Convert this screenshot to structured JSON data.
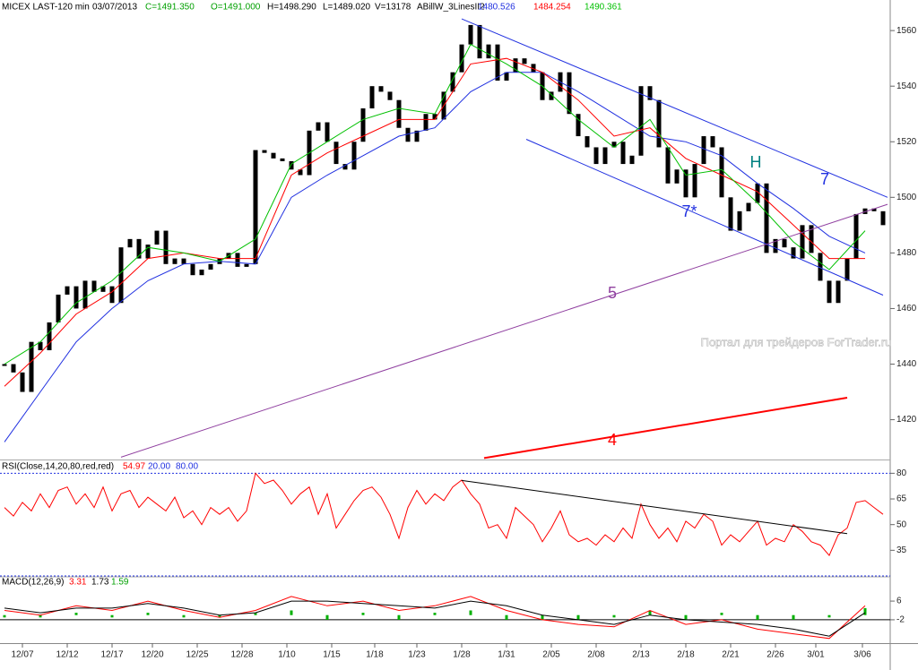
{
  "chart_data": [
    {
      "type": "price",
      "title": "MICEX LAST-120 min",
      "subtitle": "03/07/2013",
      "quote": [
        {
          "text": "C=1491.350",
          "color": "#00a000"
        },
        {
          "text": "O=1491.000",
          "color": "#00a000"
        },
        {
          "text": "H=1498.290",
          "color": "#000000"
        },
        {
          "text": "L=1489.020",
          "color": "#000000"
        },
        {
          "text": "V=13178",
          "color": "#000000"
        }
      ],
      "indicator": "ABillW_3LinesII2",
      "xlim": [
        -0.5,
        98.5
      ],
      "xticks": [
        {
          "value": 2,
          "label": "12/07"
        },
        {
          "value": 7,
          "label": "12/12"
        },
        {
          "value": 12,
          "label": "12/17"
        },
        {
          "value": 16.5,
          "label": "12/20"
        },
        {
          "value": 21.5,
          "label": "12/25"
        },
        {
          "value": 26.5,
          "label": "12/28"
        },
        {
          "value": 31.5,
          "label": "1/10"
        },
        {
          "value": 36.5,
          "label": "1/15"
        },
        {
          "value": 41.3,
          "label": "1/18"
        },
        {
          "value": 46,
          "label": "1/23"
        },
        {
          "value": 51,
          "label": "1/28"
        },
        {
          "value": 56,
          "label": "1/31"
        },
        {
          "value": 61,
          "label": "2/05"
        },
        {
          "value": 66,
          "label": "2/08"
        },
        {
          "value": 71,
          "label": "2/13"
        },
        {
          "value": 76,
          "label": "2/18"
        },
        {
          "value": 81,
          "label": "2/21"
        },
        {
          "value": 86,
          "label": "2/26"
        },
        {
          "value": 90.5,
          "label": "3/01"
        },
        {
          "value": 95.7,
          "label": "3/06"
        }
      ],
      "ylim": [
        1406,
        1571
      ],
      "yticks": [
        1420,
        1440,
        1460,
        1480,
        1500,
        1520,
        1540,
        1560
      ],
      "close": {
        "color": "#000000",
        "values": [
          1440,
          1437,
          1430,
          1448,
          1445,
          1455,
          1465,
          1468,
          1460,
          1470,
          1466,
          1468,
          1462,
          1482,
          1485,
          1478,
          1483,
          1488,
          1476,
          1478,
          1476,
          1472,
          1474,
          1476,
          1478,
          1480,
          1475,
          1476,
          1517,
          1516,
          1514,
          1513,
          1510,
          1508,
          1524,
          1527,
          1520,
          1512,
          1510,
          1520,
          1532,
          1540,
          1538,
          1535,
          1525,
          1520,
          1524,
          1530,
          1528,
          1538,
          1545,
          1555,
          1562,
          1550,
          1555,
          1542,
          1545,
          1550,
          1548,
          1545,
          1535,
          1538,
          1545,
          1530,
          1522,
          1518,
          1512,
          1518,
          1520,
          1512,
          1515,
          1540,
          1535,
          1518,
          1505,
          1510,
          1500,
          1512,
          1522,
          1518,
          1500,
          1488,
          1495,
          1498,
          1505,
          1480,
          1485,
          1482,
          1478,
          1490,
          1480,
          1470,
          1462,
          1470,
          1478,
          1494,
          1496,
          1495,
          1490
        ]
      },
      "series": [
        {
          "color": "#2030e0",
          "value_label": "1480.526",
          "x": [
            0,
            4,
            8,
            12,
            16,
            20,
            24,
            28,
            32,
            36,
            40,
            44,
            48,
            52,
            56,
            60,
            64,
            68,
            72,
            76,
            80,
            84,
            88,
            92,
            96
          ],
          "values": [
            1412,
            1430,
            1448,
            1460,
            1470,
            1476,
            1477,
            1476,
            1500,
            1508,
            1515,
            1522,
            1525,
            1538,
            1545,
            1545,
            1538,
            1530,
            1522,
            1520,
            1515,
            1505,
            1496,
            1486,
            1480
          ]
        },
        {
          "color": "#ff0000",
          "value_label": "1484.254",
          "x": [
            0,
            4,
            8,
            12,
            16,
            20,
            24,
            28,
            32,
            36,
            40,
            44,
            48,
            52,
            56,
            60,
            64,
            68,
            72,
            76,
            80,
            84,
            88,
            92,
            96
          ],
          "values": [
            1432,
            1444,
            1458,
            1466,
            1478,
            1480,
            1478,
            1478,
            1508,
            1516,
            1522,
            1528,
            1528,
            1548,
            1550,
            1545,
            1535,
            1522,
            1525,
            1514,
            1508,
            1502,
            1490,
            1478,
            1478
          ]
        },
        {
          "color": "#00c000",
          "value_label": "1490.361",
          "x": [
            0,
            4,
            8,
            12,
            16,
            20,
            24,
            28,
            32,
            36,
            40,
            44,
            48,
            52,
            56,
            60,
            64,
            68,
            72,
            76,
            80,
            84,
            88,
            92,
            96
          ],
          "values": [
            1440,
            1448,
            1462,
            1470,
            1482,
            1480,
            1477,
            1485,
            1512,
            1520,
            1528,
            1532,
            1530,
            1555,
            1548,
            1540,
            1528,
            1518,
            1528,
            1508,
            1510,
            1498,
            1484,
            1474,
            1488
          ]
        }
      ],
      "trendlines": [
        {
          "color": "#2030e0",
          "x": [
            51,
            98.5
          ],
          "values": [
            1564.2,
            1500
          ]
        },
        {
          "color": "#2030e0",
          "x": [
            58.2,
            98
          ],
          "values": [
            1520.9,
            1464.8
          ]
        },
        {
          "color": "#9040a0",
          "x": [
            13,
            98.5
          ],
          "values": [
            1406.5,
            1497.5
          ]
        },
        {
          "color": "#ff0000",
          "x": [
            53.5,
            94
          ],
          "values": [
            1406.2,
            1427.9
          ]
        }
      ],
      "annotations": [
        {
          "text": "7",
          "color": "#2030e0"
        },
        {
          "text": "7*",
          "color": "#2030e0"
        },
        {
          "text": "H",
          "color": "#008080"
        },
        {
          "text": "5",
          "color": "#9040a0"
        },
        {
          "text": "4",
          "color": "#ff0000"
        }
      ],
      "watermark": "Портал для трейдеров   ForTrader.ru"
    },
    {
      "type": "rsi",
      "title": "RSI(Close,14,20,80,red,red)",
      "quote": [
        {
          "text": "54.97",
          "color": "#ff0000"
        },
        {
          "text": "20.00",
          "color": "#2030e0"
        },
        {
          "text": "80.00",
          "color": "#2030e0"
        }
      ],
      "ylim": [
        20,
        87
      ],
      "yticks": [
        35,
        50,
        65,
        80
      ],
      "levels": [
        20,
        80
      ],
      "level_color": "#2030e0",
      "series": [
        {
          "color": "#ff0000",
          "values": [
            60,
            55,
            63,
            58,
            68,
            60,
            70,
            72,
            62,
            68,
            60,
            72,
            58,
            68,
            70,
            60,
            66,
            62,
            58,
            66,
            54,
            58,
            50,
            60,
            56,
            60,
            52,
            58,
            80,
            74,
            76,
            70,
            62,
            68,
            72,
            56,
            68,
            48,
            56,
            64,
            70,
            72,
            66,
            56,
            42,
            60,
            70,
            62,
            68,
            64,
            72,
            76,
            68,
            62,
            48,
            50,
            42,
            60,
            55,
            50,
            40,
            48,
            58,
            44,
            40,
            42,
            38,
            44,
            40,
            48,
            42,
            62,
            50,
            42,
            48,
            40,
            52,
            48,
            56,
            52,
            38,
            44,
            40,
            46,
            52,
            38,
            42,
            40,
            50,
            46,
            40,
            38,
            32,
            44,
            48,
            63,
            64,
            60,
            56
          ]
        }
      ],
      "trendlines": [
        {
          "color": "#000000",
          "x": [
            51,
            94
          ],
          "values": [
            75.8,
            44.7
          ]
        }
      ]
    },
    {
      "type": "macd",
      "title": "MACD(12,26,9)",
      "quote": [
        {
          "text": "3.31",
          "color": "#ff0000"
        },
        {
          "text": "1.73",
          "color": "#000000"
        },
        {
          "text": "1.59",
          "color": "#00a000"
        }
      ],
      "ylim": [
        -12,
        16
      ],
      "yticks": [
        6,
        -2
      ],
      "x": [
        0,
        4,
        8,
        12,
        16,
        20,
        24,
        28,
        32,
        36,
        40,
        44,
        48,
        52,
        56,
        60,
        64,
        68,
        72,
        76,
        80,
        84,
        88,
        92,
        96
      ],
      "series": [
        {
          "color": "#ff0000",
          "values": [
            2,
            0,
            4,
            2,
            6,
            2,
            -1,
            2,
            8,
            4,
            6,
            2,
            4,
            8,
            2,
            -2,
            -4,
            -5,
            2,
            -4,
            -2,
            -6,
            -8,
            -10,
            4
          ]
        },
        {
          "color": "#000000",
          "values": [
            3,
            1,
            3,
            3,
            5,
            3,
            0,
            1,
            6,
            6,
            5,
            4,
            3,
            6,
            4,
            0,
            -2,
            -4,
            0,
            -2,
            -3,
            -4,
            -6,
            -9,
            1
          ]
        }
      ],
      "histogram": {
        "color": "#00b000",
        "values": [
          -1,
          -1,
          1,
          -1,
          1,
          -1,
          -1,
          1,
          2,
          -2,
          1,
          -2,
          1,
          2,
          -2,
          -2,
          -2,
          -1,
          2,
          -2,
          1,
          -2,
          -2,
          -1,
          3
        ]
      }
    }
  ]
}
